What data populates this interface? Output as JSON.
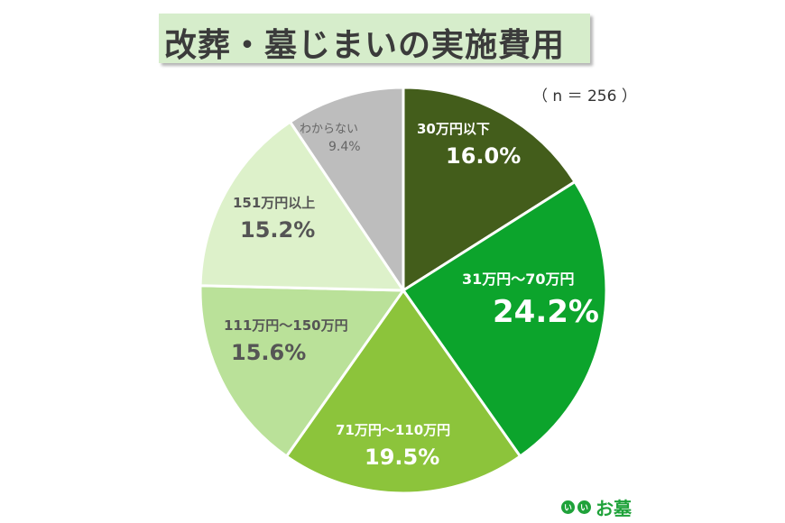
{
  "chart_data": {
    "type": "pie",
    "title": "改葬・墓じまいの実施費用",
    "note": "（ n ＝ 256 ）",
    "categories": [
      "30万円以下",
      "31万円～70万円",
      "71万円～110万円",
      "111万円～150万円",
      "151万円以上",
      "わからない"
    ],
    "values": [
      16.0,
      24.2,
      19.5,
      15.6,
      15.2,
      9.4
    ],
    "value_labels": [
      "16.0%",
      "24.2%",
      "19.5%",
      "15.6%",
      "15.2%",
      "9.4%"
    ],
    "colors": [
      "#435d1b",
      "#0ca42c",
      "#8cc43b",
      "#bae199",
      "#ddf1ca",
      "#bdbdbd"
    ],
    "label_colors": [
      "#ffffff",
      "#ffffff",
      "#ffffff",
      "#555555",
      "#555555",
      "#666666"
    ],
    "start": "top",
    "direction": "clockwise"
  },
  "logo": {
    "text": "いいお墓",
    "mark": [
      "い",
      "い"
    ],
    "color": "#1fa23a"
  }
}
